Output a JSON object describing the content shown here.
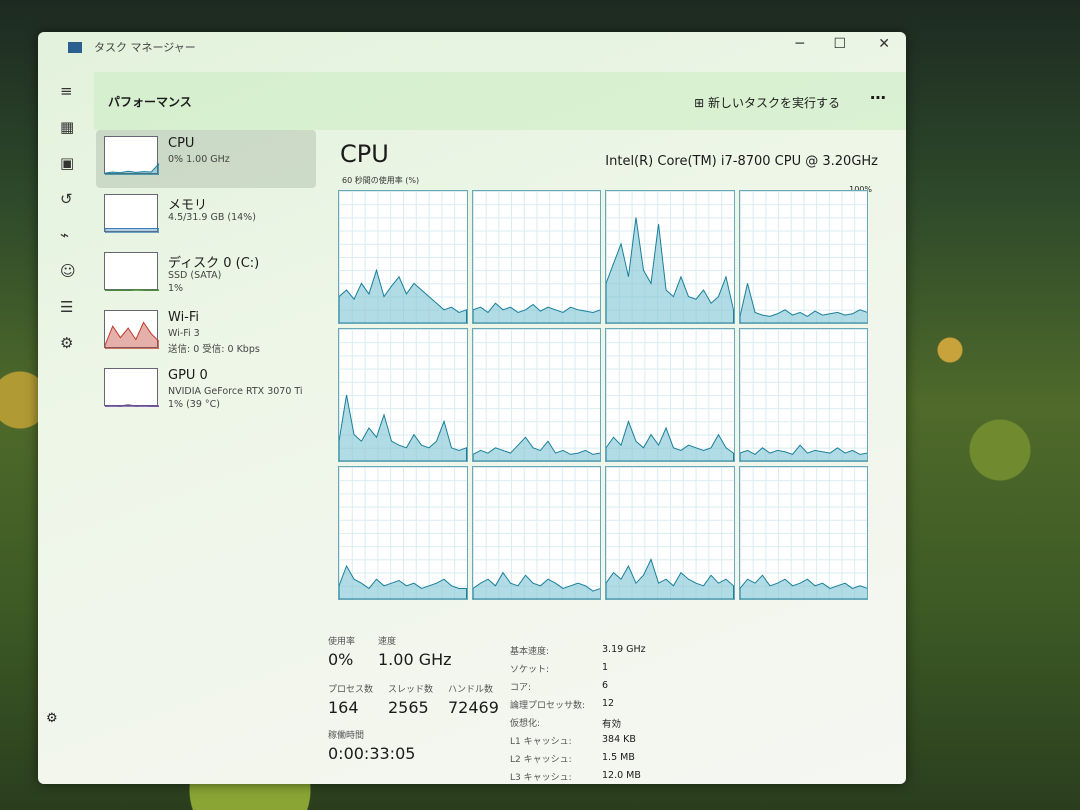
{
  "window": {
    "title": "タスク マネージャー",
    "minimize": "─",
    "maximize": "☐",
    "close": "✕"
  },
  "header": {
    "title": "パフォーマンス",
    "new_task": "新しいタスクを実行する",
    "new_task_icon": "run-task-icon",
    "more": "⋯"
  },
  "nav": [
    "menu-icon",
    "processes-icon",
    "performance-icon",
    "app-history-icon",
    "startup-icon",
    "users-icon",
    "details-icon",
    "services-icon",
    "settings-icon"
  ],
  "list": [
    {
      "name": "CPU",
      "sub1": "0% 1.00 GHz",
      "color": "#1a7f9a"
    },
    {
      "name": "メモリ",
      "sub1": "4.5/31.9 GB (14%)",
      "color": "#3a7fb5"
    },
    {
      "name": "ディスク 0 (C:)",
      "sub1": "SSD (SATA)",
      "sub2": "1%",
      "color": "#4a8a3a"
    },
    {
      "name": "Wi-Fi",
      "sub1": "Wi-Fi 3",
      "sub2": "送信: 0 受信: 0 Kbps",
      "color": "#c0392b"
    },
    {
      "name": "GPU 0",
      "sub1": "NVIDIA GeForce RTX 3070 Ti",
      "sub2": "1% (39 °C)",
      "color": "#6a4a9a"
    }
  ],
  "cpu": {
    "title": "CPU",
    "model": "Intel(R) Core(TM) i7-8700 CPU @ 3.20GHz",
    "graph_label": "60 秒間の使用率 (%)",
    "graph_max": "100%",
    "cores": [
      [
        20,
        25,
        18,
        30,
        22,
        40,
        20,
        28,
        35,
        22,
        30,
        25,
        20,
        15,
        10,
        12,
        8,
        10
      ],
      [
        10,
        12,
        8,
        15,
        10,
        12,
        8,
        10,
        14,
        9,
        12,
        10,
        8,
        12,
        10,
        9,
        8,
        10
      ],
      [
        30,
        45,
        60,
        35,
        80,
        40,
        30,
        75,
        25,
        20,
        35,
        20,
        18,
        25,
        15,
        20,
        35,
        10
      ],
      [
        5,
        30,
        8,
        6,
        5,
        7,
        10,
        6,
        8,
        5,
        9,
        6,
        7,
        8,
        6,
        7,
        10,
        8
      ],
      [
        15,
        50,
        20,
        15,
        25,
        18,
        35,
        15,
        12,
        10,
        20,
        12,
        10,
        15,
        30,
        10,
        8,
        10
      ],
      [
        5,
        8,
        6,
        10,
        8,
        6,
        12,
        18,
        10,
        8,
        15,
        6,
        8,
        5,
        6,
        8,
        5,
        6
      ],
      [
        10,
        18,
        12,
        30,
        15,
        10,
        20,
        12,
        25,
        10,
        8,
        12,
        10,
        8,
        10,
        20,
        10,
        6
      ],
      [
        6,
        8,
        5,
        10,
        6,
        8,
        7,
        5,
        12,
        6,
        8,
        7,
        6,
        10,
        6,
        8,
        5,
        6
      ],
      [
        10,
        25,
        15,
        12,
        8,
        15,
        10,
        12,
        14,
        10,
        12,
        8,
        10,
        12,
        15,
        10,
        8,
        8
      ],
      [
        8,
        12,
        15,
        10,
        20,
        12,
        10,
        18,
        12,
        10,
        15,
        12,
        8,
        10,
        12,
        10,
        6,
        8
      ],
      [
        12,
        20,
        15,
        25,
        12,
        18,
        30,
        12,
        15,
        10,
        20,
        15,
        12,
        10,
        18,
        12,
        15,
        10
      ],
      [
        8,
        15,
        12,
        18,
        10,
        12,
        15,
        10,
        12,
        15,
        10,
        12,
        8,
        10,
        12,
        8,
        10,
        8
      ]
    ]
  },
  "stats": {
    "usage_label": "使用率",
    "usage": "0%",
    "speed_label": "速度",
    "speed": "1.00 GHz",
    "proc_label": "プロセス数",
    "proc": "164",
    "thread_label": "スレッド数",
    "thread": "2565",
    "handle_label": "ハンドル数",
    "handle": "72469",
    "uptime_label": "稼働時間",
    "uptime": "0:00:33:05",
    "kv": [
      [
        "基本速度:",
        "3.19 GHz"
      ],
      [
        "ソケット:",
        "1"
      ],
      [
        "コア:",
        "6"
      ],
      [
        "論理プロセッサ数:",
        "12"
      ],
      [
        "仮想化:",
        "有効"
      ],
      [
        "L1 キャッシュ:",
        "384 KB"
      ],
      [
        "L2 キャッシュ:",
        "1.5 MB"
      ],
      [
        "L3 キャッシュ:",
        "12.0 MB"
      ]
    ]
  }
}
